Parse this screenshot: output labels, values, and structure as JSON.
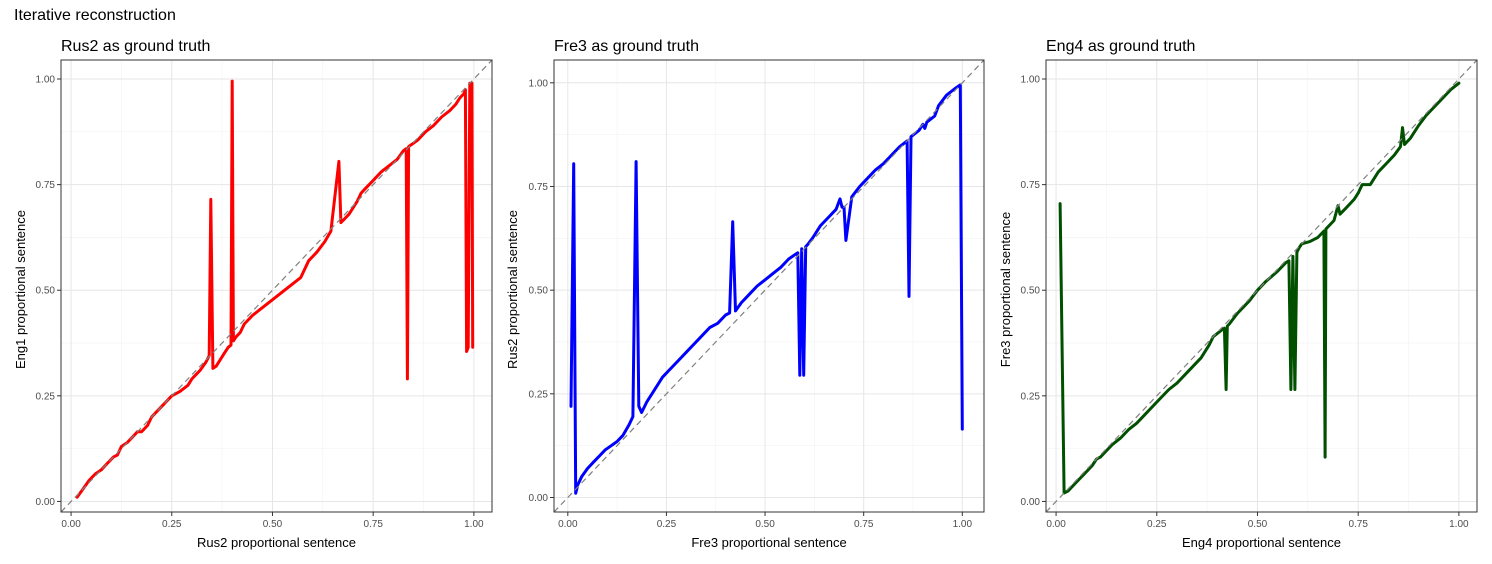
{
  "figure_title": "Iterative reconstruction",
  "chart_data": [
    {
      "type": "line",
      "title": "Rus2 as ground truth",
      "xlabel": "Rus2 proportional sentence",
      "ylabel": "Eng1 proportional sentence",
      "xlim": [
        -0.025,
        1.045
      ],
      "ylim": [
        -0.025,
        1.045
      ],
      "xticks": [
        0,
        0.25,
        0.5,
        0.75,
        1
      ],
      "xtick_labels": [
        "0.00",
        "0.25",
        "0.50",
        "0.75",
        "1.00"
      ],
      "yticks": [
        0,
        0.25,
        0.5,
        0.75,
        1
      ],
      "ytick_labels": [
        "0.00",
        "0.25",
        "0.50",
        "0.75",
        "1.00"
      ],
      "grid": true,
      "reference_line": "y = x (dashed)",
      "series": [
        {
          "color": "#ff0000",
          "x": [
            0.015,
            0.03,
            0.045,
            0.06,
            0.075,
            0.09,
            0.105,
            0.115,
            0.125,
            0.14,
            0.155,
            0.165,
            0.175,
            0.19,
            0.2,
            0.21,
            0.23,
            0.25,
            0.27,
            0.29,
            0.3,
            0.31,
            0.32,
            0.335,
            0.343,
            0.347,
            0.352,
            0.36,
            0.37,
            0.38,
            0.39,
            0.397,
            0.4,
            0.403,
            0.41,
            0.42,
            0.43,
            0.45,
            0.47,
            0.49,
            0.51,
            0.53,
            0.55,
            0.57,
            0.59,
            0.61,
            0.63,
            0.645,
            0.665,
            0.67,
            0.675,
            0.69,
            0.71,
            0.72,
            0.73,
            0.75,
            0.77,
            0.79,
            0.81,
            0.825,
            0.832,
            0.835,
            0.838,
            0.86,
            0.88,
            0.9,
            0.92,
            0.94,
            0.955,
            0.965,
            0.975,
            0.979,
            0.982,
            0.986,
            0.99,
            0.995,
            0.997
          ],
          "values": [
            0.01,
            0.03,
            0.05,
            0.065,
            0.075,
            0.09,
            0.105,
            0.11,
            0.13,
            0.14,
            0.155,
            0.165,
            0.165,
            0.18,
            0.2,
            0.21,
            0.23,
            0.25,
            0.26,
            0.275,
            0.29,
            0.3,
            0.31,
            0.33,
            0.345,
            0.715,
            0.315,
            0.32,
            0.335,
            0.35,
            0.365,
            0.37,
            0.995,
            0.38,
            0.39,
            0.4,
            0.42,
            0.44,
            0.455,
            0.47,
            0.485,
            0.5,
            0.515,
            0.53,
            0.57,
            0.59,
            0.615,
            0.64,
            0.805,
            0.66,
            0.665,
            0.68,
            0.71,
            0.73,
            0.74,
            0.76,
            0.78,
            0.795,
            0.81,
            0.83,
            0.835,
            0.29,
            0.84,
            0.855,
            0.875,
            0.89,
            0.91,
            0.925,
            0.94,
            0.955,
            0.965,
            0.975,
            0.355,
            0.365,
            0.99,
            0.99,
            0.365
          ]
        }
      ]
    },
    {
      "type": "line",
      "title": "Fre3 as ground truth",
      "xlabel": "Fre3 proportional sentence",
      "ylabel": "Rus2 proportional sentence",
      "xlim": [
        -0.035,
        1.055
      ],
      "ylim": [
        -0.035,
        1.055
      ],
      "xticks": [
        0,
        0.25,
        0.5,
        0.75,
        1
      ],
      "xtick_labels": [
        "0.00",
        "0.25",
        "0.50",
        "0.75",
        "1.00"
      ],
      "yticks": [
        0,
        0.25,
        0.5,
        0.75,
        1
      ],
      "ytick_labels": [
        "0.00",
        "0.25",
        "0.50",
        "0.75",
        "1.00"
      ],
      "grid": true,
      "reference_line": "y = x (dashed)",
      "series": [
        {
          "color": "#0000ff",
          "x": [
            0.008,
            0.015,
            0.02,
            0.025,
            0.035,
            0.05,
            0.065,
            0.08,
            0.095,
            0.11,
            0.125,
            0.14,
            0.155,
            0.165,
            0.173,
            0.18,
            0.187,
            0.2,
            0.22,
            0.24,
            0.26,
            0.28,
            0.3,
            0.32,
            0.34,
            0.36,
            0.38,
            0.4,
            0.41,
            0.418,
            0.425,
            0.44,
            0.46,
            0.48,
            0.5,
            0.52,
            0.54,
            0.56,
            0.575,
            0.583,
            0.588,
            0.593,
            0.598,
            0.603,
            0.608,
            0.62,
            0.64,
            0.66,
            0.68,
            0.69,
            0.695,
            0.7,
            0.705,
            0.72,
            0.74,
            0.76,
            0.78,
            0.8,
            0.82,
            0.84,
            0.86,
            0.865,
            0.87,
            0.89,
            0.9,
            0.905,
            0.91,
            0.93,
            0.94,
            0.96,
            0.98,
            0.995,
            1.0
          ],
          "values": [
            0.22,
            0.805,
            0.01,
            0.03,
            0.05,
            0.07,
            0.085,
            0.1,
            0.115,
            0.125,
            0.135,
            0.15,
            0.175,
            0.195,
            0.81,
            0.22,
            0.205,
            0.23,
            0.26,
            0.29,
            0.31,
            0.33,
            0.35,
            0.37,
            0.39,
            0.41,
            0.42,
            0.44,
            0.445,
            0.665,
            0.45,
            0.47,
            0.49,
            0.51,
            0.525,
            0.54,
            0.555,
            0.575,
            0.585,
            0.59,
            0.295,
            0.6,
            0.295,
            0.605,
            0.61,
            0.625,
            0.655,
            0.675,
            0.695,
            0.72,
            0.7,
            0.7,
            0.62,
            0.725,
            0.75,
            0.77,
            0.79,
            0.805,
            0.825,
            0.845,
            0.86,
            0.485,
            0.87,
            0.885,
            0.9,
            0.89,
            0.905,
            0.92,
            0.945,
            0.97,
            0.985,
            0.995,
            0.165
          ]
        }
      ]
    },
    {
      "type": "line",
      "title": "Eng4 as ground truth",
      "xlabel": "Eng4 proportional sentence",
      "ylabel": "Fre3 proportional sentence",
      "xlim": [
        -0.025,
        1.045
      ],
      "ylim": [
        -0.025,
        1.045
      ],
      "xticks": [
        0,
        0.25,
        0.5,
        0.75,
        1
      ],
      "xtick_labels": [
        "0.00",
        "0.25",
        "0.50",
        "0.75",
        "1.00"
      ],
      "yticks": [
        0,
        0.25,
        0.5,
        0.75,
        1
      ],
      "ytick_labels": [
        "0.00",
        "0.25",
        "0.50",
        "0.75",
        "1.00"
      ],
      "grid": true,
      "reference_line": "y = x (dashed)",
      "series": [
        {
          "color": "#005000",
          "x": [
            0.01,
            0.02,
            0.03,
            0.05,
            0.07,
            0.09,
            0.1,
            0.11,
            0.12,
            0.14,
            0.16,
            0.18,
            0.2,
            0.22,
            0.24,
            0.26,
            0.28,
            0.3,
            0.32,
            0.34,
            0.36,
            0.38,
            0.39,
            0.41,
            0.418,
            0.422,
            0.425,
            0.43,
            0.45,
            0.48,
            0.5,
            0.52,
            0.55,
            0.57,
            0.578,
            0.583,
            0.588,
            0.593,
            0.598,
            0.603,
            0.61,
            0.63,
            0.65,
            0.665,
            0.668,
            0.67,
            0.69,
            0.7,
            0.705,
            0.72,
            0.74,
            0.75,
            0.76,
            0.78,
            0.8,
            0.82,
            0.84,
            0.855,
            0.86,
            0.865,
            0.88,
            0.9,
            0.92,
            0.94,
            0.96,
            0.98,
            1.0
          ],
          "values": [
            0.705,
            0.02,
            0.025,
            0.045,
            0.065,
            0.085,
            0.1,
            0.105,
            0.115,
            0.135,
            0.15,
            0.17,
            0.185,
            0.205,
            0.225,
            0.245,
            0.265,
            0.28,
            0.3,
            0.32,
            0.34,
            0.37,
            0.39,
            0.405,
            0.41,
            0.265,
            0.415,
            0.42,
            0.445,
            0.475,
            0.5,
            0.52,
            0.545,
            0.565,
            0.57,
            0.265,
            0.58,
            0.265,
            0.59,
            0.6,
            0.61,
            0.615,
            0.625,
            0.64,
            0.105,
            0.645,
            0.665,
            0.7,
            0.68,
            0.695,
            0.715,
            0.73,
            0.75,
            0.75,
            0.78,
            0.8,
            0.82,
            0.84,
            0.885,
            0.845,
            0.86,
            0.89,
            0.915,
            0.935,
            0.955,
            0.975,
            0.99
          ]
        }
      ]
    }
  ]
}
